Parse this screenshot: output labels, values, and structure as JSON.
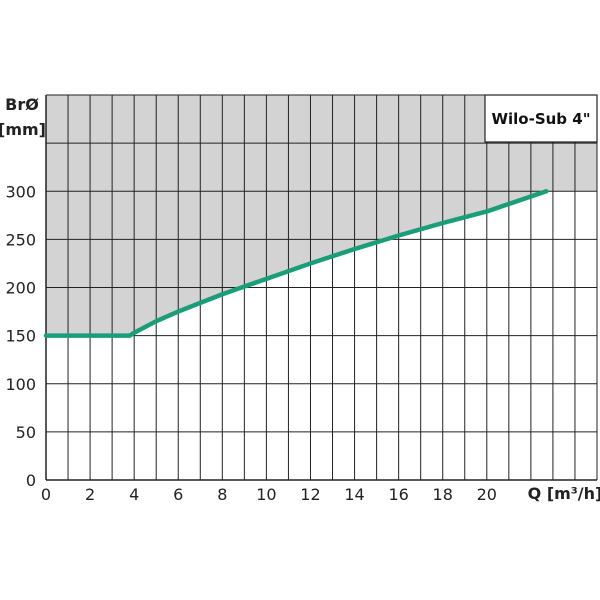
{
  "chart_data": {
    "type": "line",
    "title": "Wilo-Sub 4\"",
    "ylabel_line1": "BrØ",
    "ylabel_line2": "[mm]",
    "xlabel": "Q [m³/h]",
    "xlim": [
      0,
      25
    ],
    "ylim": [
      0,
      400
    ],
    "x_tick_labels": [
      "0",
      "2",
      "4",
      "6",
      "8",
      "10",
      "12",
      "14",
      "16",
      "18",
      "20"
    ],
    "y_tick_labels": [
      "0",
      "50",
      "100",
      "150",
      "200",
      "250",
      "300"
    ],
    "grid": true,
    "series": [
      {
        "x": [
          0,
          3.8,
          4,
          5,
          6,
          7,
          8,
          9,
          10,
          12,
          14,
          16,
          18,
          20,
          22.7
        ],
        "y": [
          150,
          150,
          153,
          165,
          175,
          184,
          193,
          201,
          209,
          225,
          240,
          254,
          267,
          279,
          300
        ]
      }
    ],
    "colors": {
      "line": "#1a9e7a",
      "shade": "#d3d3d3",
      "grid": "#222222"
    }
  }
}
